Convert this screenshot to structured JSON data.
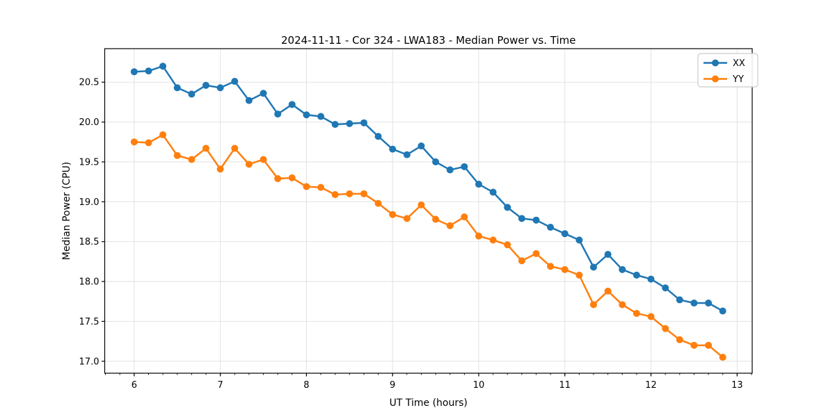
{
  "chart_data": {
    "type": "line",
    "title": "2024-11-11 - Cor 324 - LWA183 - Median Power vs. Time",
    "xlabel": "UT Time (hours)",
    "ylabel": "Median Power (CPU)",
    "grid": true,
    "legend_position": "upper right",
    "xlim": [
      5.658,
      13.175
    ],
    "ylim": [
      16.85,
      20.92
    ],
    "xticks": [
      6,
      7,
      8,
      9,
      10,
      11,
      12,
      13
    ],
    "yticks": [
      17.0,
      17.5,
      18.0,
      18.5,
      19.0,
      19.5,
      20.0,
      20.5
    ],
    "minor_xtick_step_hours": 0.1666667,
    "x": [
      6.0,
      6.167,
      6.333,
      6.5,
      6.667,
      6.833,
      7.0,
      7.167,
      7.333,
      7.5,
      7.667,
      7.833,
      8.0,
      8.167,
      8.333,
      8.5,
      8.667,
      8.833,
      9.0,
      9.167,
      9.333,
      9.5,
      9.667,
      9.833,
      10.0,
      10.167,
      10.333,
      10.5,
      10.667,
      10.833,
      11.0,
      11.167,
      11.333,
      11.5,
      11.667,
      11.833,
      12.0,
      12.167,
      12.333,
      12.5,
      12.667,
      12.833
    ],
    "series": [
      {
        "name": "XX",
        "color": "#1f77b4",
        "values": [
          20.63,
          20.64,
          20.7,
          20.43,
          20.35,
          20.46,
          20.43,
          20.51,
          20.27,
          20.36,
          20.1,
          20.22,
          20.09,
          20.07,
          19.97,
          19.98,
          19.99,
          19.82,
          19.66,
          19.59,
          19.7,
          19.5,
          19.4,
          19.44,
          19.22,
          19.12,
          18.93,
          18.79,
          18.77,
          18.68,
          18.6,
          18.52,
          18.18,
          18.34,
          18.15,
          18.08,
          18.03,
          17.92,
          17.77,
          17.73,
          17.73,
          17.63
        ]
      },
      {
        "name": "YY",
        "color": "#ff7f0e",
        "values": [
          19.75,
          19.74,
          19.84,
          19.58,
          19.53,
          19.67,
          19.41,
          19.67,
          19.47,
          19.53,
          19.29,
          19.3,
          19.19,
          19.18,
          19.09,
          19.1,
          19.1,
          18.98,
          18.84,
          18.79,
          18.96,
          18.78,
          18.7,
          18.81,
          18.57,
          18.52,
          18.46,
          18.26,
          18.35,
          18.19,
          18.15,
          18.08,
          17.71,
          17.88,
          17.71,
          17.6,
          17.56,
          17.41,
          17.27,
          17.2,
          17.2,
          17.05
        ]
      }
    ],
    "style": {
      "grid_color": "#e2e2e2",
      "spine_color": "#000000",
      "background": "#ffffff",
      "legend_border": "#cccccc"
    }
  }
}
